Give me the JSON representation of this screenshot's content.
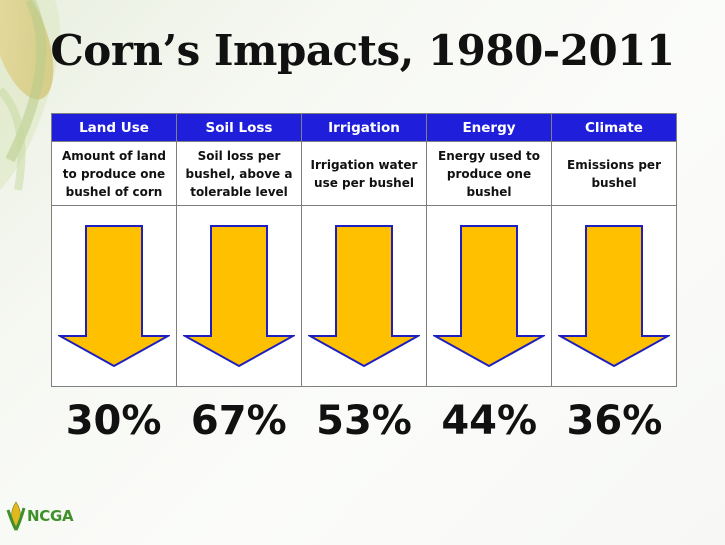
{
  "title": "Corn’s Impacts, 1980-2011",
  "columns": [
    {
      "header": "Land Use",
      "description": "Amount of land to produce one bushel of corn",
      "value": "30%"
    },
    {
      "header": "Soil Loss",
      "description": "Soil loss per bushel, above a tolerable level",
      "value": "67%"
    },
    {
      "header": "Irrigation",
      "description": "Irrigation water use per bushel",
      "value": "53%"
    },
    {
      "header": "Energy",
      "description": "Energy used to produce one bushel",
      "value": "44%"
    },
    {
      "header": "Climate",
      "description": "Emissions per bushel",
      "value": "36%"
    }
  ],
  "logo": {
    "text": "NCGA",
    "icon": "corn-leaf-icon"
  },
  "colors": {
    "header_bg": "#1f1fdb",
    "arrow_fill": "#ffc000",
    "arrow_stroke": "#1f1fbf",
    "logo_green": "#3f8f2a"
  }
}
